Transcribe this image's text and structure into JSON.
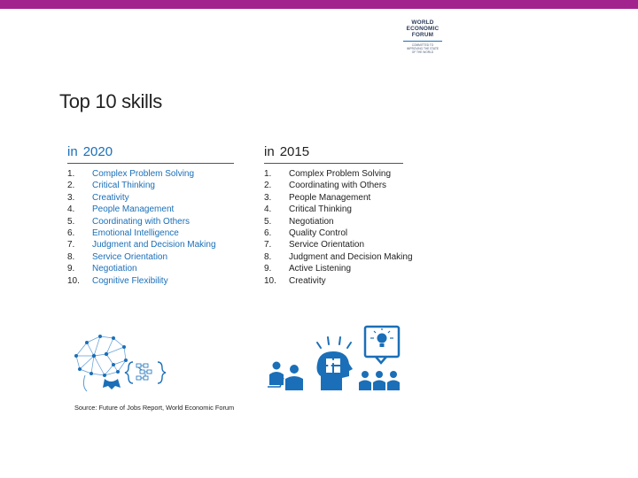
{
  "colors": {
    "accent_bar": "#a3238e",
    "skill_blue": "#1a6fb8",
    "text_dark": "#222222"
  },
  "logo": {
    "name": "WORLD\nECONOMIC\nFORUM",
    "tagline": "COMMITTED TO\nIMPROVING THE STATE\nOF THE WORLD"
  },
  "title": "Top 10 skills",
  "columns": [
    {
      "in_label": "in",
      "year": "2020",
      "skills": [
        {
          "num": "1.",
          "label": "Complex Problem Solving"
        },
        {
          "num": "2.",
          "label": "Critical Thinking"
        },
        {
          "num": "3.",
          "label": "Creativity"
        },
        {
          "num": "4.",
          "label": "People Management"
        },
        {
          "num": "5.",
          "label": "Coordinating with Others"
        },
        {
          "num": "6.",
          "label": "Emotional Intelligence"
        },
        {
          "num": "7.",
          "label": "Judgment and Decision Making"
        },
        {
          "num": "8.",
          "label": "Service Orientation"
        },
        {
          "num": "9.",
          "label": "Negotiation"
        },
        {
          "num": "10.",
          "label": "Cognitive Flexibility"
        }
      ]
    },
    {
      "in_label": "in",
      "year": "2015",
      "skills": [
        {
          "num": "1.",
          "label": "Complex Problem Solving"
        },
        {
          "num": "2.",
          "label": "Coordinating with Others"
        },
        {
          "num": "3.",
          "label": "People Management"
        },
        {
          "num": "4.",
          "label": "Critical Thinking"
        },
        {
          "num": "5.",
          "label": "Negotiation"
        },
        {
          "num": "6.",
          "label": "Quality Control"
        },
        {
          "num": "7.",
          "label": "Service Orientation"
        },
        {
          "num": "8.",
          "label": "Judgment and Decision Making"
        },
        {
          "num": "9.",
          "label": "Active Listening"
        },
        {
          "num": "10.",
          "label": "Creativity"
        }
      ]
    }
  ],
  "illustrations": [
    "brain-network-icon",
    "people-ideas-icon"
  ],
  "source": "Source: Future of Jobs Report, World Economic Forum"
}
